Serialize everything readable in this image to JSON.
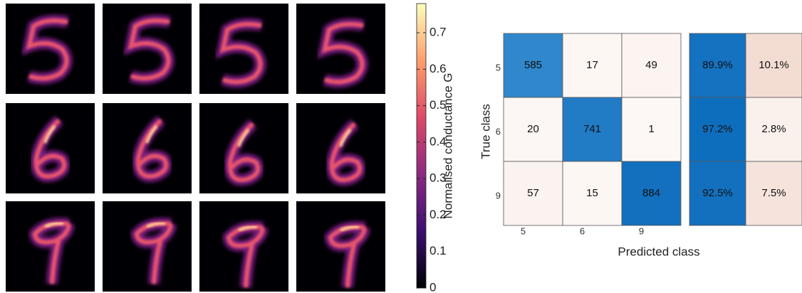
{
  "chart_data": [
    {
      "type": "colormap",
      "colorbar_label": "Normalised conductance G",
      "clim": [
        0,
        0.78
      ],
      "cticks": [
        0,
        0.1,
        0.2,
        0.3,
        0.4,
        0.5,
        0.6,
        0.7
      ]
    },
    {
      "type": "heatmap",
      "x_label": "Predicted class",
      "y_label": "True class",
      "categories": [
        "5",
        "6",
        "9"
      ],
      "values": [
        [
          585,
          17,
          49
        ],
        [
          20,
          741,
          1
        ],
        [
          57,
          15,
          884
        ]
      ],
      "row_summary": {
        "values": [
          [
            89.9,
            10.1
          ],
          [
            97.2,
            2.8
          ],
          [
            92.5,
            7.5
          ]
        ],
        "value_labels": [
          [
            "89.9%",
            "10.1%"
          ],
          [
            "97.2%",
            "2.8%"
          ],
          [
            "92.5%",
            "7.5%"
          ]
        ]
      }
    }
  ]
}
